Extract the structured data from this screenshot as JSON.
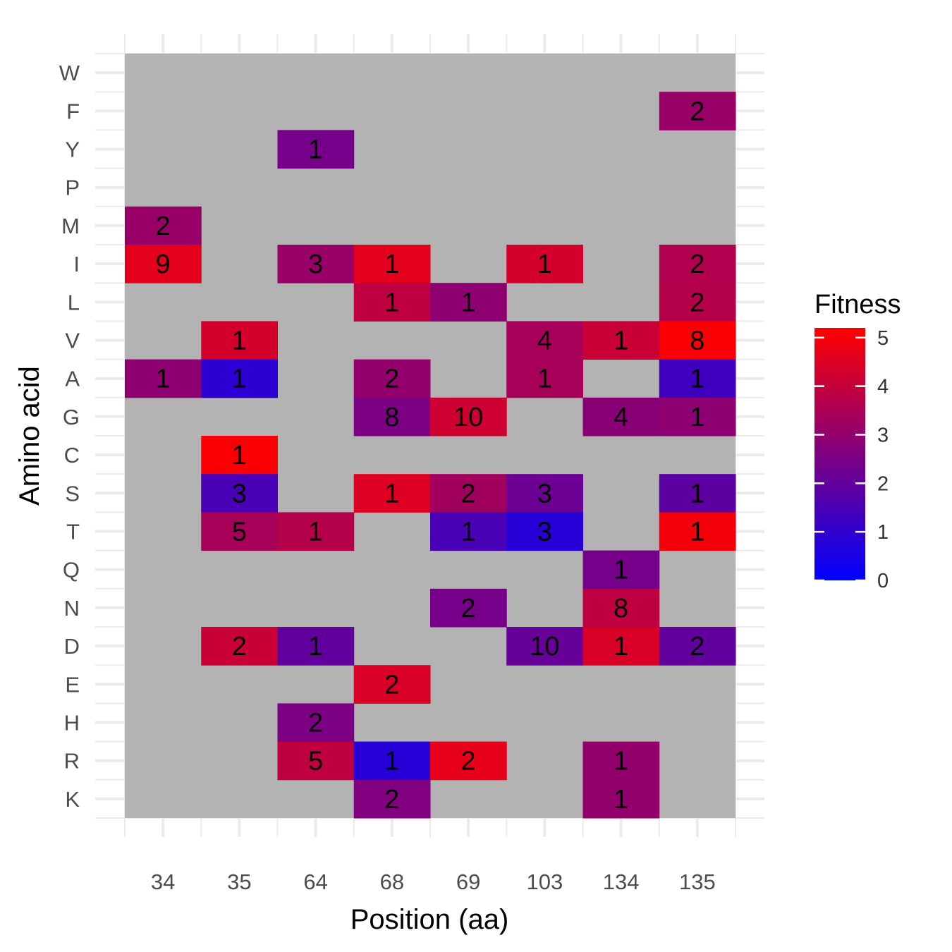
{
  "chart_data": {
    "type": "heatmap",
    "xlabel": "Position (aa)",
    "ylabel": "Amino acid",
    "x_categories": [
      "34",
      "35",
      "64",
      "68",
      "69",
      "103",
      "134",
      "135"
    ],
    "y_categories": [
      "W",
      "F",
      "Y",
      "P",
      "M",
      "I",
      "L",
      "V",
      "A",
      "G",
      "C",
      "S",
      "T",
      "Q",
      "N",
      "D",
      "E",
      "H",
      "R",
      "K"
    ],
    "missing_color": "#b3b3b3",
    "color_scale": {
      "title": "Fitness",
      "low_color": "#0000ff",
      "high_color": "#ff0000",
      "range": [
        0,
        5.2
      ],
      "ticks": [
        0,
        1,
        2,
        3,
        4,
        5
      ]
    },
    "cells": [
      {
        "x": "135",
        "y": "F",
        "fitness": 3.1,
        "label": "2"
      },
      {
        "x": "64",
        "y": "Y",
        "fitness": 2.4,
        "label": "1"
      },
      {
        "x": "34",
        "y": "M",
        "fitness": 3.1,
        "label": "2"
      },
      {
        "x": "34",
        "y": "I",
        "fitness": 4.6,
        "label": "9"
      },
      {
        "x": "64",
        "y": "I",
        "fitness": 3.1,
        "label": "3"
      },
      {
        "x": "68",
        "y": "I",
        "fitness": 4.6,
        "label": "1"
      },
      {
        "x": "103",
        "y": "I",
        "fitness": 4.3,
        "label": "1"
      },
      {
        "x": "135",
        "y": "I",
        "fitness": 3.6,
        "label": "2"
      },
      {
        "x": "68",
        "y": "L",
        "fitness": 3.9,
        "label": "1"
      },
      {
        "x": "69",
        "y": "L",
        "fitness": 2.9,
        "label": "1"
      },
      {
        "x": "135",
        "y": "L",
        "fitness": 3.7,
        "label": "2"
      },
      {
        "x": "35",
        "y": "V",
        "fitness": 4.3,
        "label": "1"
      },
      {
        "x": "103",
        "y": "V",
        "fitness": 3.4,
        "label": "4"
      },
      {
        "x": "134",
        "y": "V",
        "fitness": 4.1,
        "label": "1"
      },
      {
        "x": "135",
        "y": "V",
        "fitness": 5.1,
        "label": "8"
      },
      {
        "x": "34",
        "y": "A",
        "fitness": 2.9,
        "label": "1"
      },
      {
        "x": "35",
        "y": "A",
        "fitness": 0.9,
        "label": "1"
      },
      {
        "x": "68",
        "y": "A",
        "fitness": 3.0,
        "label": "2"
      },
      {
        "x": "103",
        "y": "A",
        "fitness": 3.4,
        "label": "1"
      },
      {
        "x": "135",
        "y": "A",
        "fitness": 1.3,
        "label": "1"
      },
      {
        "x": "68",
        "y": "G",
        "fitness": 2.5,
        "label": "8"
      },
      {
        "x": "69",
        "y": "G",
        "fitness": 4.2,
        "label": "10"
      },
      {
        "x": "134",
        "y": "G",
        "fitness": 2.8,
        "label": "4"
      },
      {
        "x": "135",
        "y": "G",
        "fitness": 2.9,
        "label": "1"
      },
      {
        "x": "35",
        "y": "C",
        "fitness": 5.1,
        "label": "1"
      },
      {
        "x": "35",
        "y": "S",
        "fitness": 1.5,
        "label": "3"
      },
      {
        "x": "68",
        "y": "S",
        "fitness": 4.5,
        "label": "1"
      },
      {
        "x": "69",
        "y": "S",
        "fitness": 3.3,
        "label": "2"
      },
      {
        "x": "103",
        "y": "S",
        "fitness": 2.2,
        "label": "3"
      },
      {
        "x": "135",
        "y": "S",
        "fitness": 1.9,
        "label": "1"
      },
      {
        "x": "35",
        "y": "T",
        "fitness": 3.4,
        "label": "5"
      },
      {
        "x": "64",
        "y": "T",
        "fitness": 3.7,
        "label": "1"
      },
      {
        "x": "69",
        "y": "T",
        "fitness": 1.5,
        "label": "1"
      },
      {
        "x": "103",
        "y": "T",
        "fitness": 0.8,
        "label": "3"
      },
      {
        "x": "135",
        "y": "T",
        "fitness": 5.0,
        "label": "1"
      },
      {
        "x": "134",
        "y": "Q",
        "fitness": 2.4,
        "label": "1"
      },
      {
        "x": "69",
        "y": "N",
        "fitness": 2.4,
        "label": "2"
      },
      {
        "x": "134",
        "y": "N",
        "fitness": 3.9,
        "label": "8"
      },
      {
        "x": "35",
        "y": "D",
        "fitness": 4.1,
        "label": "2"
      },
      {
        "x": "64",
        "y": "D",
        "fitness": 2.0,
        "label": "1"
      },
      {
        "x": "103",
        "y": "D",
        "fitness": 2.1,
        "label": "10"
      },
      {
        "x": "134",
        "y": "D",
        "fitness": 4.4,
        "label": "1"
      },
      {
        "x": "135",
        "y": "D",
        "fitness": 2.0,
        "label": "2"
      },
      {
        "x": "68",
        "y": "E",
        "fitness": 4.4,
        "label": "2"
      },
      {
        "x": "64",
        "y": "H",
        "fitness": 2.5,
        "label": "2"
      },
      {
        "x": "64",
        "y": "R",
        "fitness": 3.9,
        "label": "5"
      },
      {
        "x": "68",
        "y": "R",
        "fitness": 0.8,
        "label": "1"
      },
      {
        "x": "69",
        "y": "R",
        "fitness": 4.7,
        "label": "2"
      },
      {
        "x": "134",
        "y": "R",
        "fitness": 3.0,
        "label": "1"
      },
      {
        "x": "68",
        "y": "K",
        "fitness": 2.6,
        "label": "2"
      },
      {
        "x": "134",
        "y": "K",
        "fitness": 3.0,
        "label": "1"
      }
    ]
  }
}
